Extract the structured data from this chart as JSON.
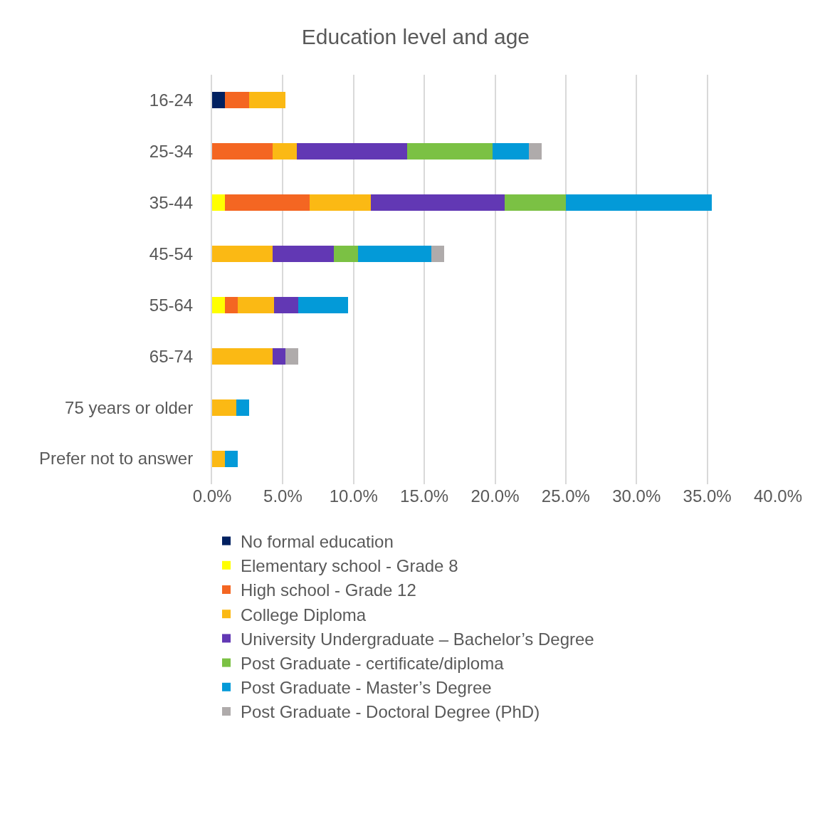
{
  "chart_data": {
    "type": "bar",
    "orientation": "horizontal",
    "stacked": true,
    "title": "Education level and age",
    "categories": [
      "16-24",
      "25-34",
      "35-44",
      "45-54",
      "55-64",
      "65-74",
      "75 years or older",
      "Prefer not to answer"
    ],
    "series": [
      {
        "name": "No formal education",
        "color": "#002060",
        "values": [
          0.9,
          null,
          null,
          null,
          null,
          null,
          null,
          null
        ]
      },
      {
        "name": "Elementary school - Grade 8",
        "color": "#ffff00",
        "values": [
          null,
          null,
          0.9,
          null,
          0.9,
          null,
          null,
          null
        ]
      },
      {
        "name": "High school - Grade 12",
        "color": "#f46622",
        "values": [
          1.7,
          4.3,
          6.0,
          null,
          0.9,
          null,
          null,
          null
        ]
      },
      {
        "name": "College Diploma",
        "color": "#fbb914",
        "values": [
          2.6,
          1.7,
          4.3,
          4.3,
          2.6,
          4.3,
          1.7,
          0.9
        ]
      },
      {
        "name": "University Undergraduate – Bachelor’s Degree",
        "color": "#6238b4",
        "values": [
          null,
          7.8,
          9.5,
          4.3,
          1.7,
          0.9,
          null,
          null
        ]
      },
      {
        "name": "Post Graduate - certificate/diploma",
        "color": "#7bc144",
        "values": [
          null,
          6.0,
          4.3,
          1.7,
          null,
          null,
          null,
          null
        ]
      },
      {
        "name": "Post Graduate - Master’s Degree",
        "color": "#039ad8",
        "values": [
          null,
          2.6,
          10.3,
          5.2,
          3.5,
          null,
          0.9,
          0.9
        ]
      },
      {
        "name": "Post Graduate - Doctoral Degree (PhD)",
        "color": "#afabab",
        "values": [
          null,
          0.9,
          null,
          0.9,
          null,
          0.9,
          null,
          null
        ]
      }
    ],
    "xlim": [
      0,
      40
    ],
    "xticks": [
      {
        "value": 0,
        "label": "0.0%"
      },
      {
        "value": 5,
        "label": "5.0%"
      },
      {
        "value": 10,
        "label": "10.0%"
      },
      {
        "value": 15,
        "label": "15.0%"
      },
      {
        "value": 20,
        "label": "20.0%"
      },
      {
        "value": 25,
        "label": "25.0%"
      },
      {
        "value": 30,
        "label": "30.0%"
      },
      {
        "value": 35,
        "label": "35.0%"
      },
      {
        "value": 40,
        "label": "40.0%"
      }
    ],
    "grid": "x",
    "legend": "bottom"
  }
}
